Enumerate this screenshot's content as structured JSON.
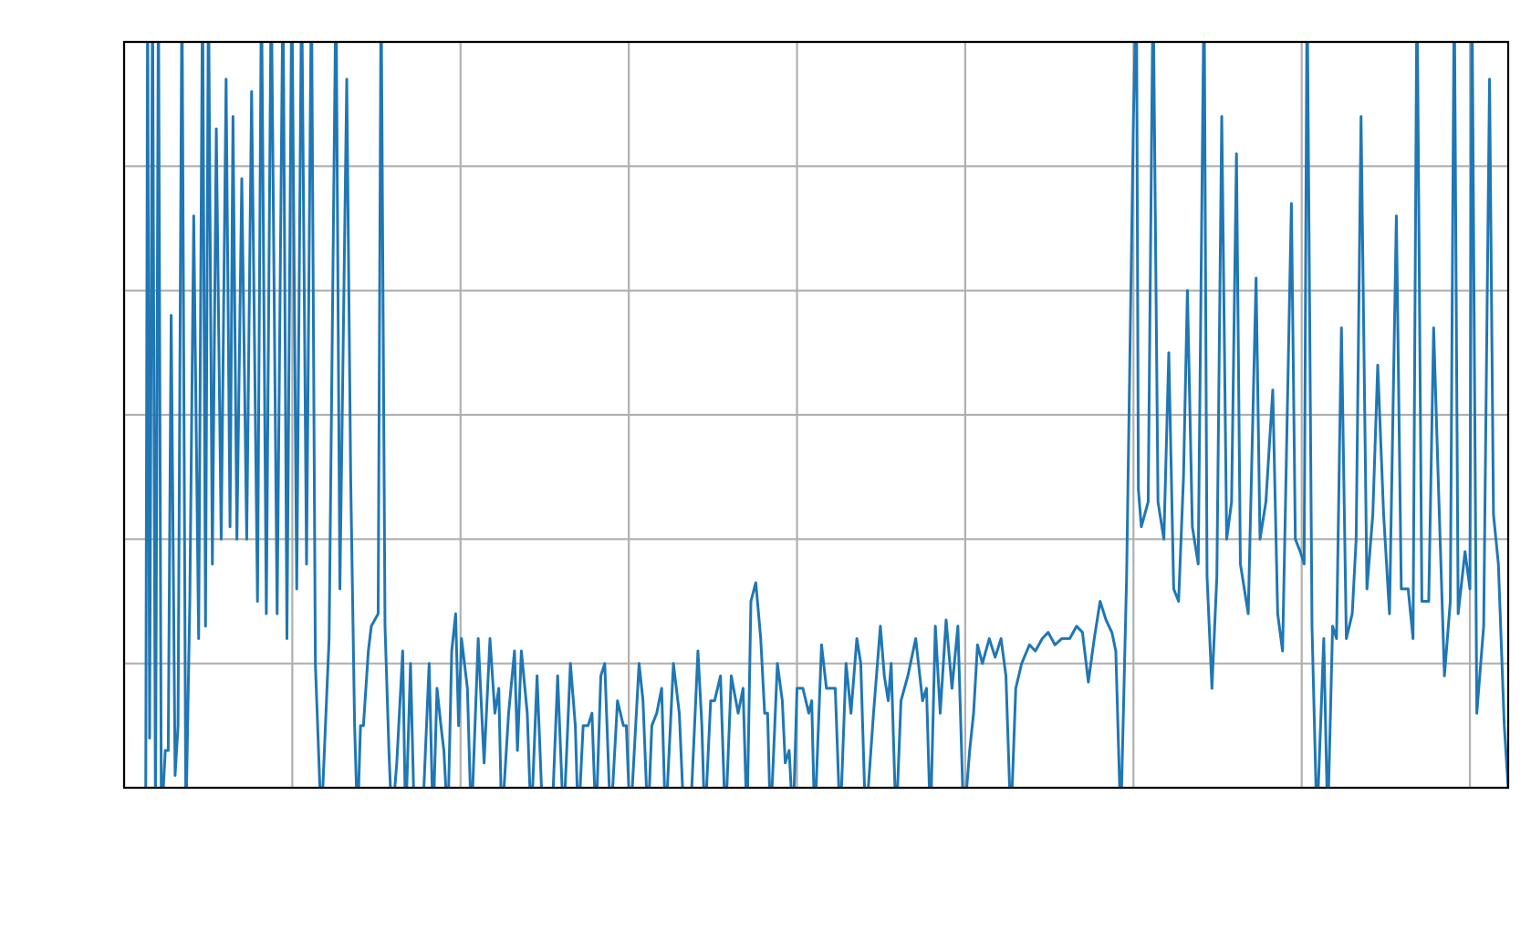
{
  "chart_data": {
    "type": "line",
    "color": "#1f77b4",
    "grid": true,
    "xlim": [
      0,
      1411
    ],
    "xticks": [
      0,
      171.5,
      343,
      514.5,
      686,
      857.5,
      1029,
      1200.5,
      1372
    ],
    "ylim": [
      0,
      6
    ],
    "yticks": [
      0,
      1,
      2,
      3,
      4,
      5,
      6
    ],
    "x": [
      22,
      24,
      26,
      29,
      32,
      35,
      38,
      42,
      45,
      48,
      52,
      55,
      59,
      63,
      67,
      71,
      76,
      80,
      83,
      86,
      90,
      94,
      99,
      104,
      108,
      111,
      115,
      120,
      125,
      130,
      136,
      140,
      145,
      150,
      156,
      162,
      166,
      171,
      176,
      181,
      186,
      191,
      195,
      201,
      209,
      216,
      220,
      227,
      231,
      235,
      238,
      241,
      244,
      249,
      252,
      259,
      262,
      266,
      270,
      273,
      278,
      284,
      287,
      292,
      296,
      304,
      311,
      315,
      319,
      323,
      326,
      330,
      334,
      338,
      341,
      344,
      350,
      354,
      361,
      367,
      373,
      378,
      382,
      385,
      392,
      398,
      401,
      405,
      411,
      415,
      421,
      427,
      436,
      442,
      448,
      455,
      460,
      463,
      468,
      473,
      477,
      481,
      486,
      490,
      496,
      503,
      509,
      512,
      516,
      525,
      529,
      534,
      538,
      543,
      548,
      552,
      560,
      566,
      571,
      577,
      585,
      589,
      592,
      598,
      602,
      608,
      613,
      619,
      626,
      631,
      635,
      639,
      644,
      649,
      653,
      656,
      659,
      666,
      671,
      674,
      678,
      682,
      686,
      692,
      698,
      701,
      704,
      711,
      716,
      719,
      725,
      730,
      736,
      741,
      747,
      751,
      756,
      764,
      771,
      775,
      779,
      782,
      787,
      792,
      799,
      807,
      814,
      818,
      822,
      827,
      832,
      838,
      844,
      850,
      856,
      862,
      866,
      870,
      875,
      882,
      888,
      894,
      899,
      904,
      909,
      915,
      923,
      929,
      936,
      942,
      949,
      956,
      964,
      971,
      977,
      983,
      989,
      995,
      1001,
      1007,
      1011,
      1016,
      1022,
      1029,
      1032,
      1034,
      1037,
      1044,
      1049,
      1054,
      1060,
      1065,
      1070,
      1075,
      1080,
      1084,
      1089,
      1095,
      1101,
      1104,
      1109,
      1114,
      1119,
      1124,
      1129,
      1134,
      1138,
      1146,
      1154,
      1158,
      1164,
      1171,
      1176,
      1181,
      1190,
      1194,
      1199,
      1203,
      1206,
      1211,
      1216,
      1223,
      1227,
      1232,
      1236,
      1241,
      1246,
      1252,
      1256,
      1261,
      1267,
      1273,
      1278,
      1284,
      1290,
      1297,
      1302,
      1309,
      1314,
      1318,
      1323,
      1330,
      1335,
      1340,
      1346,
      1352,
      1356,
      1360,
      1367,
      1372,
      1374,
      1379,
      1386,
      1392,
      1396,
      1401,
      1407,
      1411
    ],
    "values": [
      -0.3,
      6.5,
      0.4,
      6.5,
      -0.3,
      6.5,
      -0.3,
      0.3,
      0.3,
      3.8,
      0.1,
      0.5,
      6.5,
      -0.3,
      1.5,
      4.6,
      1.2,
      6.5,
      1.3,
      6.5,
      1.8,
      5.3,
      2.0,
      5.7,
      2.1,
      5.4,
      2.0,
      4.9,
      2.0,
      5.6,
      1.5,
      6.5,
      1.4,
      6.5,
      1.4,
      6.5,
      1.2,
      6.5,
      1.6,
      6.5,
      1.8,
      6.5,
      1.0,
      -0.3,
      1.2,
      6.5,
      1.6,
      5.7,
      2.5,
      0.5,
      -0.3,
      0.5,
      0.5,
      1.1,
      1.3,
      1.4,
      6.5,
      1.3,
      0.3,
      -0.3,
      0.2,
      1.1,
      -0.3,
      1.0,
      -0.3,
      -0.3,
      1.0,
      -0.3,
      0.8,
      0.5,
      0.3,
      -0.3,
      1.1,
      1.4,
      0.5,
      1.2,
      0.8,
      -0.3,
      1.2,
      0.2,
      1.2,
      0.6,
      0.8,
      -0.3,
      0.6,
      1.1,
      0.3,
      1.1,
      0.6,
      -0.3,
      0.9,
      -0.3,
      -0.3,
      0.9,
      -0.3,
      1.0,
      0.5,
      -0.3,
      0.5,
      0.5,
      0.6,
      -0.3,
      0.9,
      1.0,
      -0.3,
      0.7,
      0.5,
      0.5,
      -0.3,
      1.0,
      0.7,
      -0.3,
      0.5,
      0.6,
      0.8,
      -0.3,
      1.0,
      0.6,
      -0.3,
      -0.3,
      1.1,
      0.5,
      -0.3,
      0.7,
      0.7,
      0.9,
      -0.3,
      0.9,
      0.6,
      0.8,
      -0.3,
      1.5,
      1.65,
      1.2,
      0.6,
      0.6,
      -0.3,
      1.0,
      0.7,
      0.2,
      0.3,
      -0.3,
      0.8,
      0.8,
      0.6,
      0.7,
      -0.3,
      1.15,
      0.8,
      0.8,
      0.8,
      -0.3,
      1.0,
      0.6,
      1.2,
      1.0,
      -0.3,
      0.6,
      1.3,
      0.9,
      0.7,
      1.0,
      -0.3,
      0.7,
      0.9,
      1.2,
      0.7,
      0.8,
      -0.3,
      1.3,
      0.6,
      1.35,
      0.8,
      1.3,
      -0.3,
      0.3,
      0.6,
      1.15,
      1.0,
      1.2,
      1.05,
      1.2,
      0.9,
      -0.3,
      0.8,
      1.0,
      1.15,
      1.1,
      1.2,
      1.25,
      1.15,
      1.2,
      1.2,
      1.3,
      1.25,
      0.85,
      1.2,
      1.5,
      1.35,
      1.25,
      1.1,
      -0.3,
      1.7,
      5.4,
      6.5,
      2.4,
      2.1,
      2.3,
      6.5,
      2.3,
      2.0,
      3.5,
      1.6,
      1.5,
      2.5,
      4.0,
      2.1,
      1.8,
      6.5,
      1.7,
      0.8,
      1.7,
      5.4,
      2.0,
      2.3,
      5.1,
      1.8,
      1.4,
      4.1,
      2.0,
      2.3,
      3.2,
      1.4,
      1.1,
      4.7,
      2.0,
      1.9,
      1.8,
      6.5,
      1.3,
      -0.3,
      1.2,
      -0.3,
      1.3,
      1.2,
      3.7,
      1.2,
      1.4,
      2.0,
      5.4,
      1.6,
      2.2,
      3.4,
      2.2,
      1.4,
      4.6,
      1.6,
      1.6,
      1.2,
      6.5,
      1.5,
      1.5,
      3.7,
      2.4,
      0.9,
      1.5,
      6.5,
      1.4,
      1.9,
      1.6,
      6.5,
      0.6,
      1.3,
      5.7,
      2.2,
      1.8,
      0.5,
      0
    ]
  }
}
